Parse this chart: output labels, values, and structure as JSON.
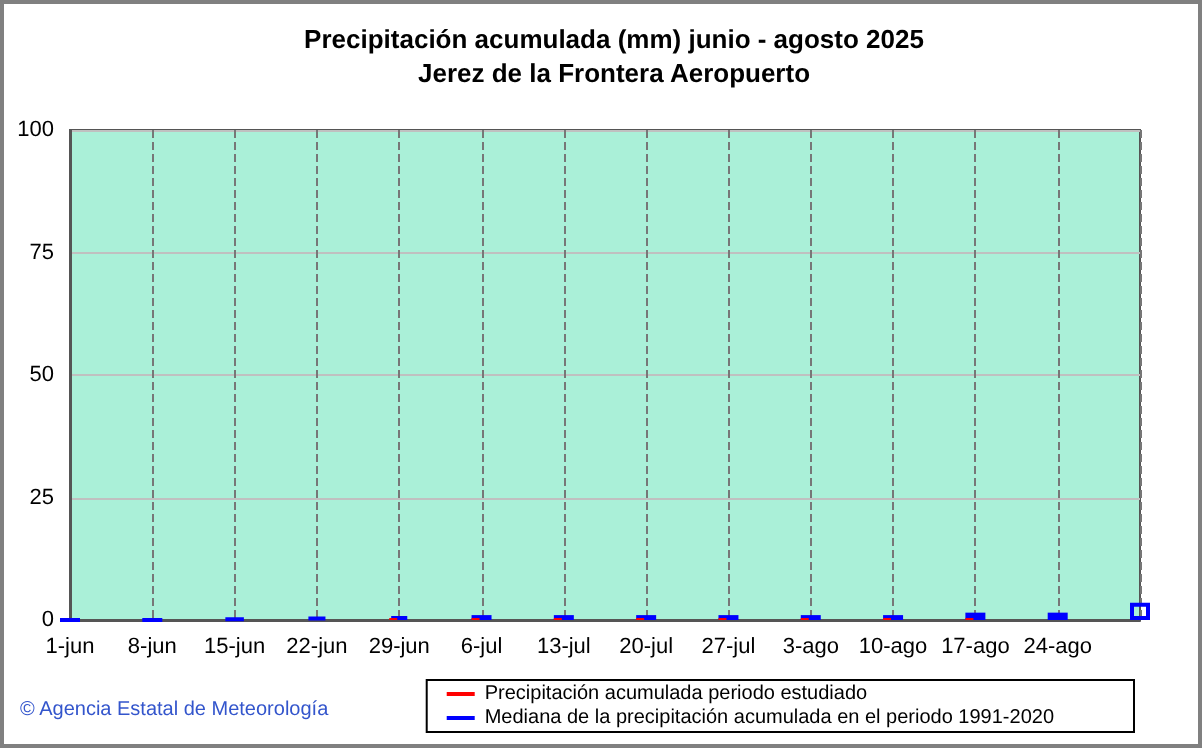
{
  "chart_data": {
    "type": "bar",
    "title": "Precipitación acumulada (mm) junio - agosto 2025",
    "subtitle": "Jerez de la Frontera Aeropuerto",
    "categories": [
      "1-jun",
      "8-jun",
      "15-jun",
      "22-jun",
      "29-jun",
      "6-jul",
      "13-jul",
      "20-jul",
      "27-jul",
      "3-ago",
      "10-ago",
      "17-ago",
      "24-ago",
      null
    ],
    "series": [
      {
        "name": "Precipitación acumulada periodo estudiado",
        "color": "#ff0000",
        "values": [
          0,
          0,
          0,
          0,
          0.4,
          0.4,
          0.4,
          0.4,
          0.4,
          0.4,
          0.4,
          0.4,
          null,
          null
        ]
      },
      {
        "name": "Mediana de la precipitación acumulada en el periodo 1991-2020",
        "color": "#0000ff",
        "values": [
          0,
          0,
          0.3,
          0.6,
          0.8,
          1,
          1,
          1,
          1,
          1,
          1,
          1.5,
          1.5,
          3.5
        ]
      }
    ],
    "ylim": [
      0,
      100
    ],
    "yticks": [
      0,
      25,
      50,
      75,
      100
    ],
    "grid": true,
    "legend": "bottom",
    "annotations": [
      "© Agencia Estatal de Meteorología"
    ]
  }
}
